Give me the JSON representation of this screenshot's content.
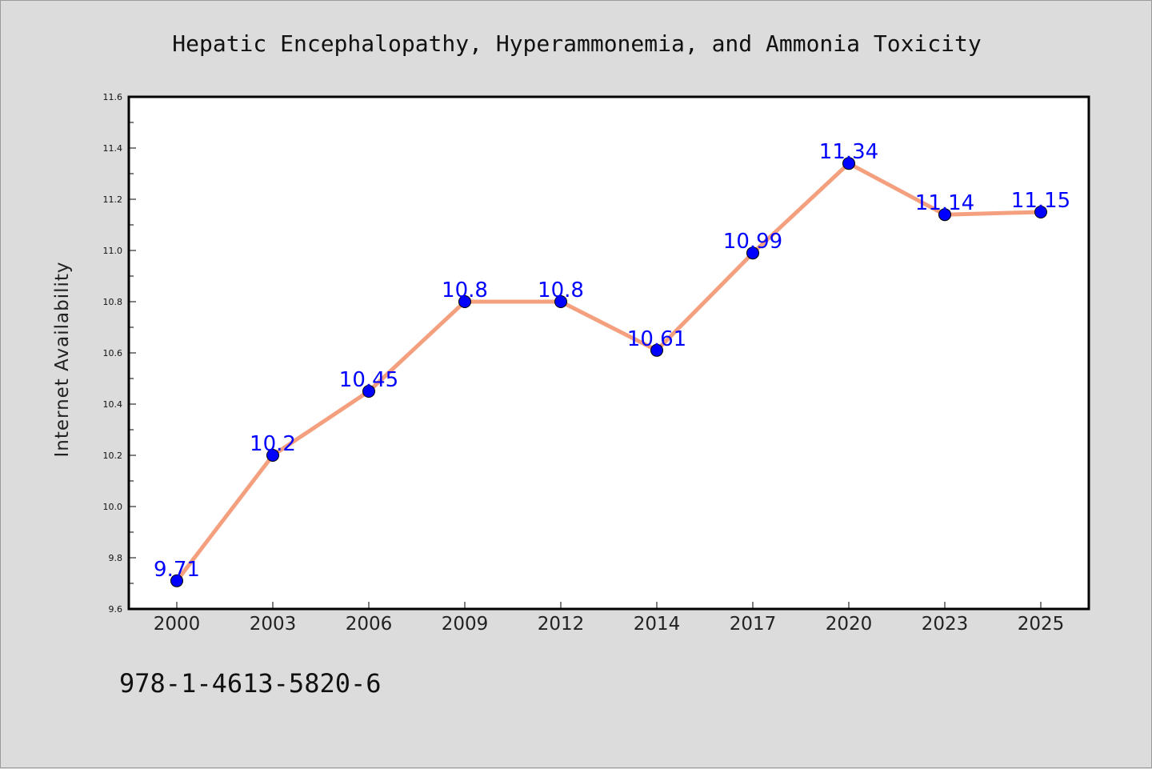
{
  "colors": {
    "background": "#dcdcdc",
    "plot_background": "#ffffff",
    "line": "#f4a07e",
    "marker": "#0000ff",
    "data_label": "#0000ff",
    "axis": "#000000"
  },
  "footer": {
    "isbn": "978-1-4613-5820-6"
  },
  "chart_data": {
    "type": "line",
    "title": "Hepatic Encephalopathy, Hyperammonemia, and Ammonia Toxicity",
    "xlabel": "",
    "ylabel": "Internet Availability",
    "categories": [
      "2000",
      "2003",
      "2006",
      "2009",
      "2012",
      "2014",
      "2017",
      "2020",
      "2023",
      "2025"
    ],
    "series": [
      {
        "values": [
          9.71,
          10.2,
          10.45,
          10.8,
          10.8,
          10.61,
          10.99,
          11.34,
          11.14,
          11.15
        ]
      }
    ],
    "data_labels": [
      "9.71",
      "10.2",
      "10.45",
      "10.8",
      "10.8",
      "10.61",
      "10.99",
      "11.34",
      "11.14",
      "11.15"
    ],
    "ylim": [
      9.6,
      11.6
    ],
    "yticks": [
      "9.6",
      "9.8",
      "10.0",
      "10.2",
      "10.4",
      "10.6",
      "10.8",
      "11.0",
      "11.2",
      "11.4",
      "11.6"
    ],
    "grid": false,
    "legend": "none",
    "marker": "circle"
  }
}
